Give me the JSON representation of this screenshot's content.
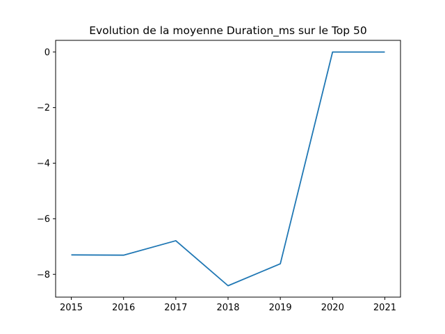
{
  "chart_data": {
    "type": "line",
    "title": "Evolution de la moyenne Duration_ms sur le Top 50",
    "xlabel": "",
    "ylabel": "",
    "x": [
      2015,
      2016,
      2017,
      2018,
      2019,
      2020,
      2021
    ],
    "x_tick_labels": [
      "2015",
      "2016",
      "2017",
      "2018",
      "2019",
      "2020",
      "2021"
    ],
    "xlim": [
      2014.7,
      2021.3
    ],
    "y_ticks": [
      0,
      -2,
      -4,
      -6,
      -8
    ],
    "y_tick_labels": [
      "0",
      "−2",
      "−4",
      "−6",
      "−8"
    ],
    "ylim": [
      -8.82,
      0.42
    ],
    "series": [
      {
        "values": [
          -7.3,
          -7.31,
          -6.79,
          -8.41,
          -7.62,
          0.0,
          0.0
        ],
        "color": "#1f77b4"
      }
    ],
    "grid": false,
    "legend": "none"
  }
}
